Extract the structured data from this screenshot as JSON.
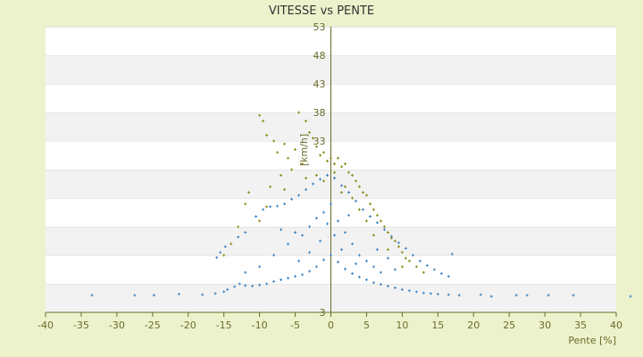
{
  "chart_data": {
    "type": "scatter",
    "title": "VITESSE vs PENTE",
    "xlabel": "Pente [%]",
    "ylabel": "[km/h]",
    "xlim": [
      -40,
      40
    ],
    "ylim": [
      3,
      53
    ],
    "xticks": [
      -40,
      -35,
      -30,
      -25,
      -20,
      -15,
      -10,
      -5,
      0,
      5,
      10,
      15,
      20,
      25,
      30,
      35,
      40
    ],
    "yticks": [
      3,
      8,
      13,
      18,
      23,
      28,
      33,
      38,
      43,
      48,
      53
    ],
    "ytick_labels": [
      "3",
      "",
      "",
      "",
      "",
      "",
      "33",
      "38",
      "43",
      "48",
      "53"
    ],
    "grid": "horizontal alternating bands",
    "legend": "none",
    "series": [
      {
        "color": "#3a86c8",
        "marker": "+",
        "points": [
          [
            -33.5,
            6.0
          ],
          [
            -27.5,
            6.0
          ],
          [
            -24.8,
            6.0
          ],
          [
            -21.3,
            6.2
          ],
          [
            -18.0,
            6.1
          ],
          [
            -16.2,
            6.3
          ],
          [
            -15.0,
            6.6
          ],
          [
            -14.5,
            7.0
          ],
          [
            -13.5,
            7.5
          ],
          [
            -12.8,
            8.0
          ],
          [
            -12.0,
            7.7
          ],
          [
            -11.0,
            7.6
          ],
          [
            -10.0,
            7.8
          ],
          [
            -9.0,
            8.0
          ],
          [
            -8.0,
            8.4
          ],
          [
            -7.0,
            8.7
          ],
          [
            -6.0,
            9.0
          ],
          [
            -5.0,
            9.3
          ],
          [
            -4.0,
            9.6
          ],
          [
            -3.0,
            10.2
          ],
          [
            -2.0,
            11.0
          ],
          [
            -1.0,
            12.2
          ],
          [
            0.0,
            13.0
          ],
          [
            1.0,
            11.8
          ],
          [
            2.0,
            10.6
          ],
          [
            3.0,
            9.8
          ],
          [
            4.0,
            9.2
          ],
          [
            5.0,
            8.7
          ],
          [
            6.0,
            8.2
          ],
          [
            7.0,
            7.9
          ],
          [
            8.0,
            7.6
          ],
          [
            9.0,
            7.3
          ],
          [
            10.0,
            7.0
          ],
          [
            11.0,
            6.8
          ],
          [
            12.0,
            6.6
          ],
          [
            13.0,
            6.4
          ],
          [
            14.0,
            6.3
          ],
          [
            15.0,
            6.2
          ],
          [
            16.5,
            6.1
          ],
          [
            18.0,
            6.0
          ],
          [
            21.0,
            6.1
          ],
          [
            22.5,
            5.8
          ],
          [
            26.0,
            6.0
          ],
          [
            27.5,
            6.0
          ],
          [
            30.5,
            6.0
          ],
          [
            34.0,
            6.0
          ],
          [
            42.0,
            5.8
          ],
          [
            -16.0,
            12.6
          ],
          [
            -15.5,
            13.5
          ],
          [
            -14.8,
            14.5
          ],
          [
            -13.0,
            16.2
          ],
          [
            -12.0,
            17.0
          ],
          [
            -10.5,
            19.8
          ],
          [
            -9.5,
            21.0
          ],
          [
            -8.5,
            21.5
          ],
          [
            -7.5,
            21.6
          ],
          [
            -6.5,
            22.0
          ],
          [
            -5.5,
            22.8
          ],
          [
            -4.5,
            23.5
          ],
          [
            -3.5,
            24.5
          ],
          [
            -2.5,
            25.5
          ],
          [
            -1.5,
            26.3
          ],
          [
            -0.5,
            27.0
          ],
          [
            0.5,
            26.5
          ],
          [
            1.5,
            25.2
          ],
          [
            2.5,
            24.0
          ],
          [
            3.5,
            22.5
          ],
          [
            4.5,
            21.0
          ],
          [
            5.5,
            19.8
          ],
          [
            6.5,
            18.7
          ],
          [
            7.5,
            17.5
          ],
          [
            8.5,
            16.3
          ],
          [
            9.5,
            15.2
          ],
          [
            10.5,
            14.2
          ],
          [
            11.5,
            13.0
          ],
          [
            12.5,
            12.0
          ],
          [
            13.5,
            11.2
          ],
          [
            14.5,
            10.5
          ],
          [
            15.5,
            9.8
          ],
          [
            16.5,
            9.3
          ],
          [
            17.0,
            13.2
          ],
          [
            -6.0,
            15.0
          ],
          [
            -5.0,
            17.0
          ],
          [
            -4.0,
            16.5
          ],
          [
            -3.0,
            18.0
          ],
          [
            -2.0,
            19.5
          ],
          [
            -1.0,
            20.5
          ],
          [
            0.0,
            22.0
          ],
          [
            1.0,
            19.0
          ],
          [
            2.0,
            17.0
          ],
          [
            3.0,
            15.0
          ],
          [
            4.0,
            13.0
          ],
          [
            5.0,
            12.0
          ],
          [
            6.0,
            11.0
          ],
          [
            7.0,
            10.0
          ],
          [
            -8.0,
            13.0
          ],
          [
            -10.0,
            11.0
          ],
          [
            -12.0,
            10.0
          ],
          [
            -3.0,
            13.5
          ],
          [
            1.5,
            14.0
          ],
          [
            3.5,
            11.5
          ],
          [
            0.5,
            16.5
          ],
          [
            -1.5,
            15.5
          ],
          [
            8.0,
            12.5
          ],
          [
            -7.0,
            17.5
          ],
          [
            -4.5,
            12.0
          ],
          [
            2.5,
            20.0
          ],
          [
            -0.5,
            18.5
          ],
          [
            6.5,
            14.0
          ],
          [
            9.0,
            10.5
          ]
        ]
      },
      {
        "color": "#8b8b1a",
        "marker": "+",
        "points": [
          [
            -10.0,
            37.5
          ],
          [
            -9.5,
            36.5
          ],
          [
            -9.0,
            34.0
          ],
          [
            -8.0,
            33.0
          ],
          [
            -7.5,
            31.0
          ],
          [
            -6.5,
            32.5
          ],
          [
            -6.0,
            30.0
          ],
          [
            -5.0,
            31.5
          ],
          [
            -4.5,
            38.0
          ],
          [
            -3.5,
            36.5
          ],
          [
            -3.0,
            34.5
          ],
          [
            -2.5,
            33.5
          ],
          [
            -2.0,
            32.0
          ],
          [
            -1.5,
            30.5
          ],
          [
            -1.0,
            31.0
          ],
          [
            -0.5,
            29.5
          ],
          [
            0.0,
            30.0
          ],
          [
            0.5,
            29.0
          ],
          [
            1.0,
            30.0
          ],
          [
            1.5,
            28.5
          ],
          [
            2.0,
            29.0
          ],
          [
            2.5,
            27.5
          ],
          [
            3.0,
            27.0
          ],
          [
            3.5,
            26.0
          ],
          [
            4.0,
            25.0
          ],
          [
            4.5,
            24.0
          ],
          [
            5.0,
            23.5
          ],
          [
            5.5,
            22.0
          ],
          [
            6.0,
            21.0
          ],
          [
            6.5,
            20.0
          ],
          [
            7.0,
            19.0
          ],
          [
            7.5,
            18.0
          ],
          [
            8.0,
            17.0
          ],
          [
            8.5,
            16.0
          ],
          [
            9.0,
            15.5
          ],
          [
            9.5,
            14.5
          ],
          [
            10.0,
            13.5
          ],
          [
            10.5,
            12.5
          ],
          [
            11.0,
            12.0
          ],
          [
            12.0,
            11.0
          ],
          [
            13.0,
            10.0
          ],
          [
            -11.5,
            24.0
          ],
          [
            -12.0,
            22.0
          ],
          [
            -13.0,
            18.0
          ],
          [
            -14.0,
            15.0
          ],
          [
            -15.0,
            13.0
          ],
          [
            -8.5,
            25.0
          ],
          [
            -7.0,
            27.0
          ],
          [
            -5.5,
            28.0
          ],
          [
            -4.0,
            29.0
          ],
          [
            -2.0,
            27.0
          ],
          [
            -1.0,
            26.0
          ],
          [
            0.5,
            27.5
          ],
          [
            2.0,
            25.0
          ],
          [
            3.0,
            23.0
          ],
          [
            -6.5,
            24.5
          ],
          [
            -3.5,
            26.5
          ],
          [
            1.5,
            24.0
          ],
          [
            4.0,
            21.0
          ],
          [
            5.0,
            19.0
          ],
          [
            -9.0,
            21.5
          ],
          [
            -10.0,
            19.0
          ],
          [
            6.0,
            16.5
          ],
          [
            8.0,
            14.0
          ],
          [
            10.0,
            11.0
          ]
        ]
      }
    ]
  }
}
